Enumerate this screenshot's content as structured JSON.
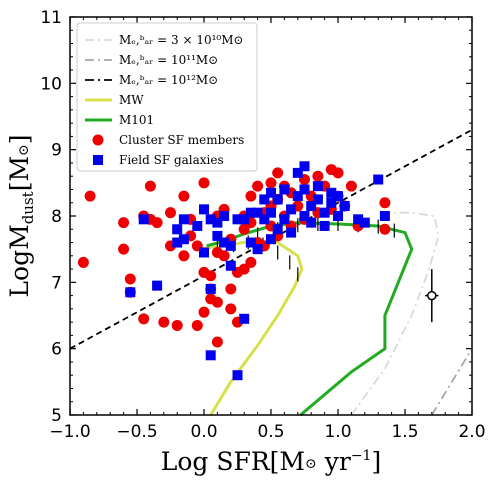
{
  "chart_data": {
    "type": "scatter",
    "xlabel": "Log SFR[M⊙ yr⁻¹]",
    "ylabel": "LogMₙust[M⊙]",
    "xlim": [
      -1.0,
      2.0
    ],
    "ylim": [
      5,
      11
    ],
    "xticks": [
      "−1.0",
      "−0.5",
      "0.0",
      "0.5",
      "1.0",
      "1.5",
      "2.0"
    ],
    "xtick_values": [
      -1.0,
      -0.5,
      0.0,
      0.5,
      1.0,
      1.5,
      2.0
    ],
    "yticks": [
      "5",
      "6",
      "7",
      "8",
      "9",
      "10",
      "11"
    ],
    "ytick_values": [
      5,
      6,
      7,
      8,
      9,
      10,
      11
    ],
    "legend_position": "top-left",
    "legend": [
      {
        "label": "Mₑ,ᵇₐᵣ = 3 × 10¹⁰M⊙",
        "style": "dashdot",
        "color": "#d9d9d9"
      },
      {
        "label": "Mₑ,ᵇₐᵣ = 10¹¹M⊙",
        "style": "dashdot",
        "color": "#a6a6a6"
      },
      {
        "label": "Mₑ,ᵇₐᵣ = 10¹²M⊙",
        "style": "dashdot",
        "color": "#000000"
      },
      {
        "label": "MW",
        "style": "solid",
        "color": "#d7e04a"
      },
      {
        "label": "M101",
        "style": "solid",
        "color": "#22aa22"
      },
      {
        "label": "Cluster SF members",
        "style": "circle",
        "color": "#ee0000"
      },
      {
        "label": "Field SF galaxies",
        "style": "square",
        "color": "#0000ee"
      }
    ],
    "series": [
      {
        "kind": "line",
        "color": "#000000",
        "dash": "dashed",
        "points": [
          [
            -1.0,
            6.0
          ],
          [
            2.0,
            9.3
          ]
        ]
      },
      {
        "kind": "line",
        "color": "#d7e04a",
        "dash": "solid",
        "points": [
          [
            0.05,
            5.0
          ],
          [
            0.2,
            5.5
          ],
          [
            0.4,
            6.05
          ],
          [
            0.55,
            6.5
          ],
          [
            0.68,
            6.95
          ],
          [
            0.73,
            7.2
          ],
          [
            0.7,
            7.4
          ],
          [
            0.55,
            7.6
          ],
          [
            0.35,
            7.62
          ],
          [
            0.15,
            7.55
          ],
          [
            -0.05,
            7.5
          ]
        ]
      },
      {
        "kind": "line",
        "color": "#22aa22",
        "dash": "solid",
        "points": [
          [
            0.72,
            5.0
          ],
          [
            1.1,
            5.65
          ],
          [
            1.35,
            6.0
          ],
          [
            1.35,
            6.5
          ],
          [
            1.45,
            7.0
          ],
          [
            1.55,
            7.5
          ],
          [
            1.5,
            7.75
          ],
          [
            1.3,
            7.85
          ],
          [
            1.0,
            7.88
          ],
          [
            0.7,
            7.9
          ],
          [
            0.5,
            7.85
          ],
          [
            0.3,
            7.73
          ],
          [
            0.15,
            7.62
          ],
          [
            0.02,
            7.55
          ]
        ]
      },
      {
        "kind": "line",
        "color": "#d9d9d9",
        "dash": "dashdot",
        "points": [
          [
            1.1,
            5.0
          ],
          [
            1.35,
            5.7
          ],
          [
            1.55,
            6.5
          ],
          [
            1.68,
            7.2
          ],
          [
            1.75,
            7.7
          ],
          [
            1.72,
            8.0
          ],
          [
            1.55,
            8.05
          ],
          [
            1.3,
            8.05
          ]
        ]
      },
      {
        "kind": "line",
        "color": "#a6a6a6",
        "dash": "dashdot",
        "points": [
          [
            1.7,
            5.0
          ],
          [
            1.85,
            5.5
          ],
          [
            2.0,
            6.0
          ]
        ]
      },
      {
        "kind": "error",
        "color": "#000000",
        "x": 1.7,
        "y": 6.8,
        "xerr": 0.05,
        "yerr": 0.4
      },
      {
        "kind": "scatter",
        "name": "Cluster SF members",
        "marker": "circle",
        "color": "#ee0000",
        "points": [
          [
            -0.9,
            7.3
          ],
          [
            -0.85,
            8.3
          ],
          [
            -0.6,
            7.9
          ],
          [
            -0.6,
            7.5
          ],
          [
            -0.55,
            6.85
          ],
          [
            -0.55,
            7.05
          ],
          [
            -0.45,
            8.0
          ],
          [
            -0.45,
            6.45
          ],
          [
            -0.4,
            7.95
          ],
          [
            -0.4,
            8.45
          ],
          [
            -0.35,
            7.9
          ],
          [
            -0.3,
            6.4
          ],
          [
            -0.25,
            8.05
          ],
          [
            -0.25,
            7.55
          ],
          [
            -0.2,
            6.35
          ],
          [
            -0.15,
            8.3
          ],
          [
            -0.15,
            7.4
          ],
          [
            -0.1,
            7.7
          ],
          [
            -0.1,
            7.95
          ],
          [
            -0.05,
            6.35
          ],
          [
            -0.05,
            7.55
          ],
          [
            0.0,
            6.55
          ],
          [
            0.0,
            7.15
          ],
          [
            0.0,
            8.5
          ],
          [
            0.05,
            7.1
          ],
          [
            0.05,
            6.9
          ],
          [
            0.05,
            6.75
          ],
          [
            0.1,
            6.7
          ],
          [
            0.1,
            7.45
          ],
          [
            0.1,
            8.0
          ],
          [
            0.1,
            6.1
          ],
          [
            0.15,
            7.4
          ],
          [
            0.15,
            8.1
          ],
          [
            0.2,
            6.9
          ],
          [
            0.2,
            7.65
          ],
          [
            0.2,
            6.6
          ],
          [
            0.25,
            7.15
          ],
          [
            0.25,
            6.4
          ],
          [
            0.3,
            7.2
          ],
          [
            0.3,
            7.8
          ],
          [
            0.3,
            8.0
          ],
          [
            0.35,
            7.3
          ],
          [
            0.35,
            7.9
          ],
          [
            0.35,
            8.3
          ],
          [
            0.4,
            7.6
          ],
          [
            0.4,
            8.45
          ],
          [
            0.45,
            8.05
          ],
          [
            0.45,
            7.55
          ],
          [
            0.5,
            8.15
          ],
          [
            0.5,
            8.5
          ],
          [
            0.5,
            7.85
          ],
          [
            0.55,
            8.25
          ],
          [
            0.55,
            8.65
          ],
          [
            0.55,
            7.7
          ],
          [
            0.6,
            8.0
          ],
          [
            0.6,
            8.45
          ],
          [
            0.65,
            8.35
          ],
          [
            0.65,
            7.85
          ],
          [
            0.7,
            8.15
          ],
          [
            0.75,
            8.55
          ],
          [
            0.75,
            7.95
          ],
          [
            0.8,
            8.3
          ],
          [
            0.85,
            8.05
          ],
          [
            0.85,
            8.6
          ],
          [
            0.9,
            8.45
          ],
          [
            0.95,
            8.7
          ],
          [
            0.95,
            8.1
          ],
          [
            1.0,
            8.3
          ],
          [
            1.0,
            8.65
          ],
          [
            1.05,
            8.15
          ],
          [
            1.1,
            8.45
          ],
          [
            1.15,
            7.85
          ],
          [
            1.35,
            8.2
          ],
          [
            1.35,
            7.8
          ]
        ]
      },
      {
        "kind": "scatter",
        "name": "Field SF galaxies",
        "marker": "square",
        "color": "#0000ee",
        "points": [
          [
            -0.55,
            6.85
          ],
          [
            -0.45,
            7.95
          ],
          [
            -0.35,
            6.95
          ],
          [
            -0.2,
            7.6
          ],
          [
            -0.2,
            7.8
          ],
          [
            -0.15,
            7.95
          ],
          [
            -0.15,
            7.65
          ],
          [
            -0.05,
            7.85
          ],
          [
            0.0,
            8.1
          ],
          [
            0.0,
            7.45
          ],
          [
            0.05,
            7.95
          ],
          [
            0.05,
            6.9
          ],
          [
            0.05,
            5.9
          ],
          [
            0.1,
            7.7
          ],
          [
            0.1,
            7.9
          ],
          [
            0.15,
            8.0
          ],
          [
            0.15,
            7.6
          ],
          [
            0.2,
            7.55
          ],
          [
            0.2,
            7.25
          ],
          [
            0.25,
            7.95
          ],
          [
            0.3,
            7.95
          ],
          [
            0.3,
            6.45
          ],
          [
            0.35,
            8.05
          ],
          [
            0.35,
            7.6
          ],
          [
            0.4,
            8.05
          ],
          [
            0.4,
            7.5
          ],
          [
            0.45,
            7.95
          ],
          [
            0.45,
            8.25
          ],
          [
            0.5,
            8.05
          ],
          [
            0.5,
            8.35
          ],
          [
            0.5,
            7.65
          ],
          [
            0.55,
            8.25
          ],
          [
            0.55,
            7.8
          ],
          [
            0.6,
            8.4
          ],
          [
            0.6,
            7.95
          ],
          [
            0.65,
            8.1
          ],
          [
            0.65,
            7.75
          ],
          [
            0.7,
            8.3
          ],
          [
            0.7,
            8.65
          ],
          [
            0.75,
            8.0
          ],
          [
            0.75,
            8.4
          ],
          [
            0.75,
            8.75
          ],
          [
            0.8,
            8.15
          ],
          [
            0.8,
            7.9
          ],
          [
            0.85,
            8.45
          ],
          [
            0.85,
            8.25
          ],
          [
            0.9,
            8.05
          ],
          [
            0.9,
            7.85
          ],
          [
            0.95,
            8.2
          ],
          [
            0.95,
            8.35
          ],
          [
            1.0,
            8.0
          ],
          [
            1.0,
            8.3
          ],
          [
            1.05,
            8.15
          ],
          [
            1.15,
            7.95
          ],
          [
            1.2,
            7.9
          ],
          [
            1.3,
            8.55
          ],
          [
            1.35,
            8.0
          ],
          [
            0.25,
            5.6
          ]
        ]
      }
    ]
  }
}
